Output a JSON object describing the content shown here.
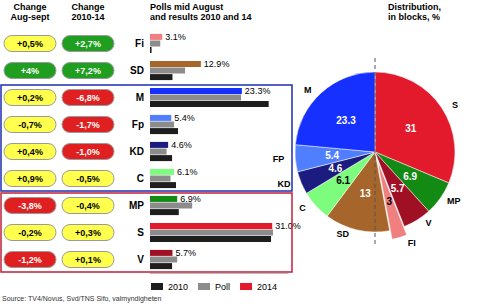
{
  "chart_data": [
    {
      "type": "bar",
      "title": "Polls mid August\nand results 2010 and 14",
      "orientation": "horizontal",
      "categories": [
        "Fi",
        "SD",
        "M",
        "Fp",
        "KD",
        "C",
        "MP",
        "S",
        "V"
      ],
      "series": [
        {
          "name": "2010",
          "color": "#1e1e1e",
          "values": [
            0.4,
            5.7,
            30.1,
            7.1,
            5.6,
            6.6,
            7.3,
            30.7,
            5.6
          ]
        },
        {
          "name": "Poll",
          "color": "#8c8c8c",
          "values": [
            2.6,
            8.9,
            23.1,
            6.1,
            4.2,
            5.2,
            10.7,
            31.2,
            6.9
          ]
        },
        {
          "name": "2014",
          "color": "#e31a2c",
          "colors": [
            "#f08080",
            "#a6652a",
            "#1530ff",
            "#4f7fff",
            "#1c1c80",
            "#7dfc7d",
            "#138a13",
            "#e31a2c",
            "#a01025"
          ],
          "values": [
            3.1,
            12.9,
            23.3,
            5.4,
            4.6,
            6.1,
            6.9,
            31.0,
            5.7
          ],
          "data_labels": true,
          "value_labels": [
            "3.1%",
            "12.9%",
            "23.3%",
            "5.4%",
            "4.6%",
            "6.1%",
            "6.9%",
            "31.0%",
            "5.7%"
          ]
        }
      ],
      "xlim": [
        0,
        35
      ],
      "tick_labels": "y",
      "legend": "bottom",
      "changes": [
        {
          "title": "Change\nAug-sept",
          "labels": [
            "+0,5%",
            "+4%",
            "+0,2%",
            "-0,7%",
            "+0,4%",
            "+0,9%",
            "-3,8%",
            "-0,2%",
            "-1,2%"
          ],
          "colors": [
            "#ffff4d",
            "#1f9e1f",
            "#ffff4d",
            "#ffff4d",
            "#ffff4d",
            "#ffff4d",
            "#e02020",
            "#ffff4d",
            "#e02020"
          ]
        },
        {
          "title": "Change\n2010-14",
          "labels": [
            "+2,7%",
            "+7,2%",
            "-6,8%",
            "-1,7%",
            "-1,0%",
            "-0,5%",
            "-0,4%",
            "+0,3%",
            "+0,1%"
          ],
          "colors": [
            "#1f9e1f",
            "#1f9e1f",
            "#e02020",
            "#e02020",
            "#e02020",
            "#ffff4d",
            "#ffff4d",
            "#ffff4d",
            "#ffff4d"
          ]
        }
      ],
      "blocks": [
        {
          "categories": [
            "M",
            "Fp",
            "KD",
            "C"
          ],
          "color": "#1f2fb0"
        },
        {
          "categories": [
            "MP",
            "S",
            "V"
          ],
          "color": "#c0203a"
        }
      ]
    },
    {
      "type": "pie",
      "title": "Distribution,\nin blocks, %",
      "categories": [
        "S",
        "MP",
        "V",
        "FI",
        "SD",
        "C",
        "KD",
        "FP",
        "M"
      ],
      "values": [
        31,
        6.9,
        5.7,
        3,
        13,
        6.1,
        4.6,
        5.4,
        23.3
      ],
      "colors": [
        "#e31a2c",
        "#138a13",
        "#a01025",
        "#f08080",
        "#a6652a",
        "#7dfc7d",
        "#1c1c80",
        "#4f7fff",
        "#1530ff"
      ],
      "data_labels": true
    }
  ],
  "source": "Source: TV4/Novus, Svd/TNS Sifo, valmyndigheten"
}
